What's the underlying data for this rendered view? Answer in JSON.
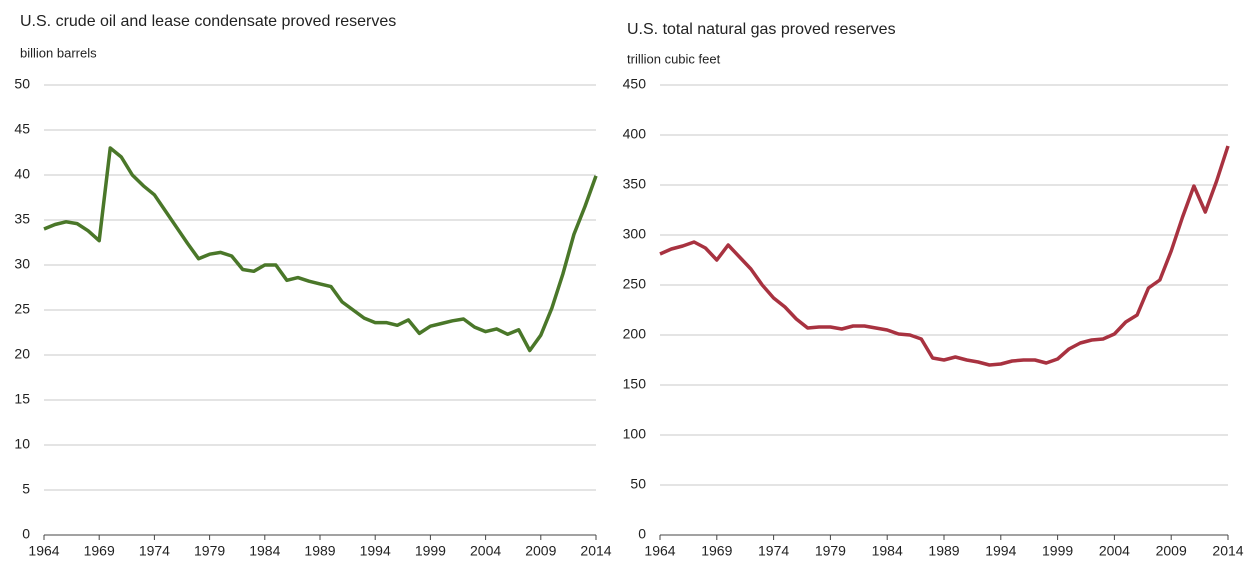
{
  "chart_data": [
    {
      "type": "line",
      "title": "U.S. crude oil and lease condensate proved reserves",
      "y_label": "billion barrels",
      "x": [
        1964,
        1965,
        1966,
        1967,
        1968,
        1969,
        1970,
        1971,
        1972,
        1973,
        1974,
        1975,
        1976,
        1977,
        1978,
        1979,
        1980,
        1981,
        1982,
        1983,
        1984,
        1985,
        1986,
        1987,
        1988,
        1989,
        1990,
        1991,
        1992,
        1993,
        1994,
        1995,
        1996,
        1997,
        1998,
        1999,
        2000,
        2001,
        2002,
        2003,
        2004,
        2005,
        2006,
        2007,
        2008,
        2009,
        2010,
        2011,
        2012,
        2013,
        2014
      ],
      "series": [
        {
          "color": "#4a7729",
          "values": [
            34.0,
            34.5,
            34.8,
            34.6,
            33.8,
            32.7,
            43.0,
            42.0,
            40.0,
            38.8,
            37.8,
            36.0,
            34.2,
            32.4,
            30.7,
            31.2,
            31.4,
            31.0,
            29.5,
            29.3,
            30.0,
            30.0,
            28.3,
            28.6,
            28.2,
            27.9,
            27.6,
            25.9,
            25.0,
            24.1,
            23.6,
            23.6,
            23.3,
            23.9,
            22.4,
            23.2,
            23.5,
            23.8,
            24.0,
            23.1,
            22.6,
            22.9,
            22.3,
            22.8,
            20.5,
            22.2,
            25.2,
            29.0,
            33.4,
            36.5,
            39.9
          ]
        }
      ],
      "xlim": [
        1964,
        2014
      ],
      "xticks": [
        1964,
        1969,
        1974,
        1979,
        1984,
        1989,
        1994,
        1999,
        2004,
        2009,
        2014
      ],
      "ylim": [
        0,
        50
      ],
      "yticks": [
        0,
        5,
        10,
        15,
        20,
        25,
        30,
        35,
        40,
        45,
        50
      ],
      "grid": true
    },
    {
      "type": "line",
      "title": "U.S. total natural gas proved reserves",
      "y_label": "trillion cubic feet",
      "x": [
        1964,
        1965,
        1966,
        1967,
        1968,
        1969,
        1970,
        1971,
        1972,
        1973,
        1974,
        1975,
        1976,
        1977,
        1978,
        1979,
        1980,
        1981,
        1982,
        1983,
        1984,
        1985,
        1986,
        1987,
        1988,
        1989,
        1990,
        1991,
        1992,
        1993,
        1994,
        1995,
        1996,
        1997,
        1998,
        1999,
        2000,
        2001,
        2002,
        2003,
        2004,
        2005,
        2006,
        2007,
        2008,
        2009,
        2010,
        2011,
        2012,
        2013,
        2014
      ],
      "series": [
        {
          "color": "#a83240",
          "values": [
            281,
            286,
            289,
            293,
            287,
            275,
            290,
            278,
            266,
            250,
            237,
            228,
            216,
            207,
            208,
            208,
            206,
            209,
            209,
            207,
            205,
            201,
            200,
            196,
            177,
            175,
            178,
            175,
            173,
            170,
            171,
            174,
            175,
            175,
            172,
            176,
            186,
            192,
            195,
            196,
            201,
            213,
            220,
            247,
            255,
            284,
            318,
            349,
            323,
            354,
            389
          ]
        }
      ],
      "xlim": [
        1964,
        2014
      ],
      "xticks": [
        1964,
        1969,
        1974,
        1979,
        1984,
        1989,
        1994,
        1999,
        2004,
        2009,
        2014
      ],
      "ylim": [
        0,
        450
      ],
      "yticks": [
        0,
        50,
        100,
        150,
        200,
        250,
        300,
        350,
        400,
        450
      ],
      "grid": true
    }
  ]
}
